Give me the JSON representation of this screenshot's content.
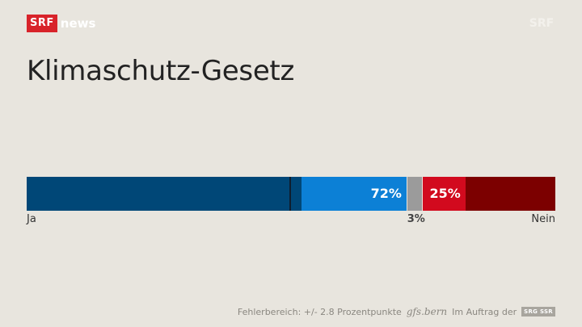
{
  "header": {
    "logo_srf": "SRF",
    "logo_news": "news",
    "corner_mark": "SRF"
  },
  "title": "Klimaschutz-Gesetz",
  "colors": {
    "ja_strong": "#004777",
    "ja_light": "#0c80d6",
    "undecided": "#9b9b9b",
    "nein_light": "#d20a1e",
    "nein_strong": "#7c0000"
  },
  "chart_data": {
    "type": "bar",
    "orientation": "horizontal-stacked",
    "total": 100,
    "majority_threshold": 50,
    "segments": [
      {
        "key": "ja_strong",
        "value": 52,
        "label": ""
      },
      {
        "key": "ja_light",
        "value": 20,
        "label": ""
      },
      {
        "key": "undecided",
        "value": 3,
        "label": ""
      },
      {
        "key": "nein_light",
        "value": 8,
        "label": ""
      },
      {
        "key": "nein_strong",
        "value": 17,
        "label": ""
      }
    ],
    "ja_total_label": "72%",
    "nein_total_label": "25%",
    "undecided_label": "3%",
    "left_label": "Ja",
    "right_label": "Nein"
  },
  "footer": {
    "error_margin": "Fehlerbereich: +/- 2.8 Prozentpunkte",
    "institute": "gfs.bern",
    "commissioned": "Im Auftrag der",
    "commissioner": "SRG SSR"
  }
}
